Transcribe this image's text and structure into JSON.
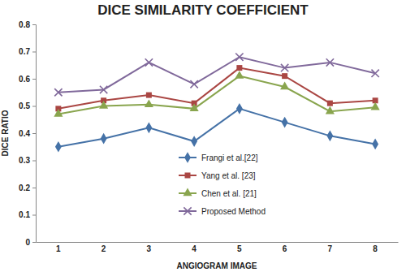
{
  "chart_data": {
    "type": "line",
    "title": "DICE SIMILARITY COEFFICIENT",
    "x_label": "ANGIOGRAM IMAGE",
    "y_label": "DICE RATIO",
    "categories": [
      "1",
      "2",
      "3",
      "4",
      "5",
      "6",
      "7",
      "8"
    ],
    "series": [
      {
        "name": "Frangi et al.[22]",
        "color": "#4572a7",
        "marker": "diamond",
        "values": [
          0.35,
          0.38,
          0.42,
          0.37,
          0.49,
          0.44,
          0.39,
          0.36
        ]
      },
      {
        "name": "Yang et al. [23]",
        "color": "#aa4643",
        "marker": "square",
        "values": [
          0.49,
          0.52,
          0.54,
          0.51,
          0.64,
          0.61,
          0.51,
          0.52
        ]
      },
      {
        "name": "Chen et al. [21]",
        "color": "#89a54e",
        "marker": "triangle",
        "values": [
          0.47,
          0.5,
          0.505,
          0.49,
          0.61,
          0.57,
          0.48,
          0.495
        ]
      },
      {
        "name": "Proposed Method",
        "color": "#80699b",
        "marker": "x",
        "values": [
          0.55,
          0.56,
          0.66,
          0.58,
          0.68,
          0.64,
          0.66,
          0.62
        ]
      }
    ],
    "ylim": [
      0,
      0.8
    ],
    "yticks": [
      0,
      0.1,
      0.2,
      0.3,
      0.4,
      0.5,
      0.6,
      0.7,
      0.8
    ],
    "grid": false,
    "legend": "center"
  }
}
